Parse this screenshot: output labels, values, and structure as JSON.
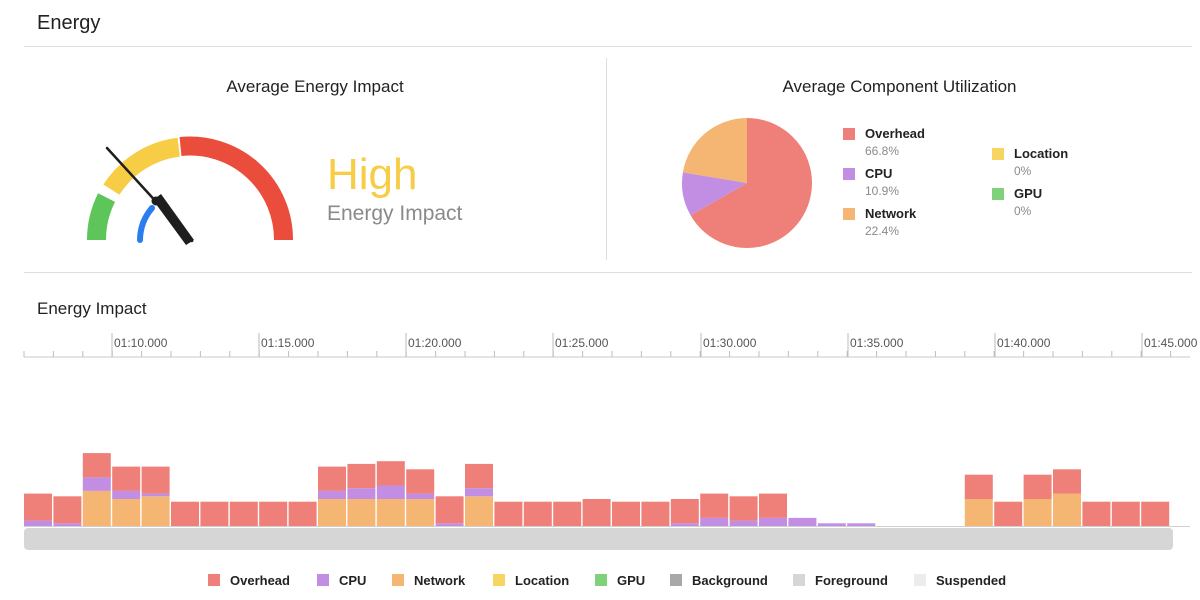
{
  "page": {
    "title": "Energy"
  },
  "average_energy": {
    "title": "Average Energy Impact",
    "level": "High",
    "subtitle": "Energy Impact",
    "level_color": "#f7cd46"
  },
  "utilization": {
    "title": "Average Component Utilization",
    "items": [
      {
        "name": "Overhead",
        "percent": "66.8%",
        "value": 66.8,
        "color": "#ef8079"
      },
      {
        "name": "CPU",
        "percent": "10.9%",
        "value": 10.9,
        "color": "#c18ee4"
      },
      {
        "name": "Network",
        "percent": "22.4%",
        "value": 22.4,
        "color": "#f4b672"
      },
      {
        "name": "Location",
        "percent": "0%",
        "value": 0,
        "color": "#f7d560"
      },
      {
        "name": "GPU",
        "percent": "0%",
        "value": 0,
        "color": "#7fd27a"
      }
    ]
  },
  "energy_impact": {
    "title": "Energy Impact",
    "ticks": [
      "01:10.000",
      "01:15.000",
      "01:20.000",
      "01:25.000",
      "01:30.000",
      "01:35.000",
      "01:40.000",
      "01:45.000"
    ]
  },
  "legend": [
    {
      "name": "Overhead",
      "color": "#ef8079"
    },
    {
      "name": "CPU",
      "color": "#c18ee4"
    },
    {
      "name": "Network",
      "color": "#f4b672"
    },
    {
      "name": "Location",
      "color": "#f7d560"
    },
    {
      "name": "GPU",
      "color": "#7fd27a"
    },
    {
      "name": "Background",
      "color": "#a8a8a8"
    },
    {
      "name": "Foreground",
      "color": "#d6d6d6"
    },
    {
      "name": "Suspended",
      "color": "#ececec"
    }
  ],
  "chart_data": {
    "type": "bar",
    "title": "Energy Impact",
    "stacked": true,
    "x_start": "01:07.000",
    "interval_seconds": 1,
    "series": [
      {
        "name": "Network",
        "values": [
          0,
          0,
          13,
          10,
          11,
          0,
          0,
          0,
          0,
          0,
          10,
          10,
          10,
          10,
          0,
          11,
          0,
          0,
          0,
          0,
          0,
          0,
          0,
          0,
          0,
          0,
          0,
          0,
          0,
          0,
          0,
          0,
          10,
          0,
          10,
          12,
          0,
          0,
          0
        ]
      },
      {
        "name": "CPU",
        "values": [
          2,
          1,
          5,
          3,
          1,
          0,
          0,
          0,
          0,
          0,
          3,
          4,
          5,
          2,
          1,
          3,
          0,
          0,
          0,
          0,
          0,
          0,
          1,
          3,
          2,
          3,
          3,
          1,
          1,
          0,
          0,
          0,
          0,
          0,
          0,
          0,
          0,
          0,
          0
        ]
      },
      {
        "name": "Overhead",
        "values": [
          10,
          10,
          9,
          9,
          10,
          9,
          9,
          9,
          9,
          9,
          9,
          9,
          9,
          9,
          10,
          9,
          9,
          9,
          9,
          10,
          9,
          9,
          9,
          9,
          9,
          9,
          0,
          0,
          0,
          0,
          0,
          0,
          9,
          9,
          9,
          9,
          9,
          9,
          9
        ]
      }
    ]
  }
}
